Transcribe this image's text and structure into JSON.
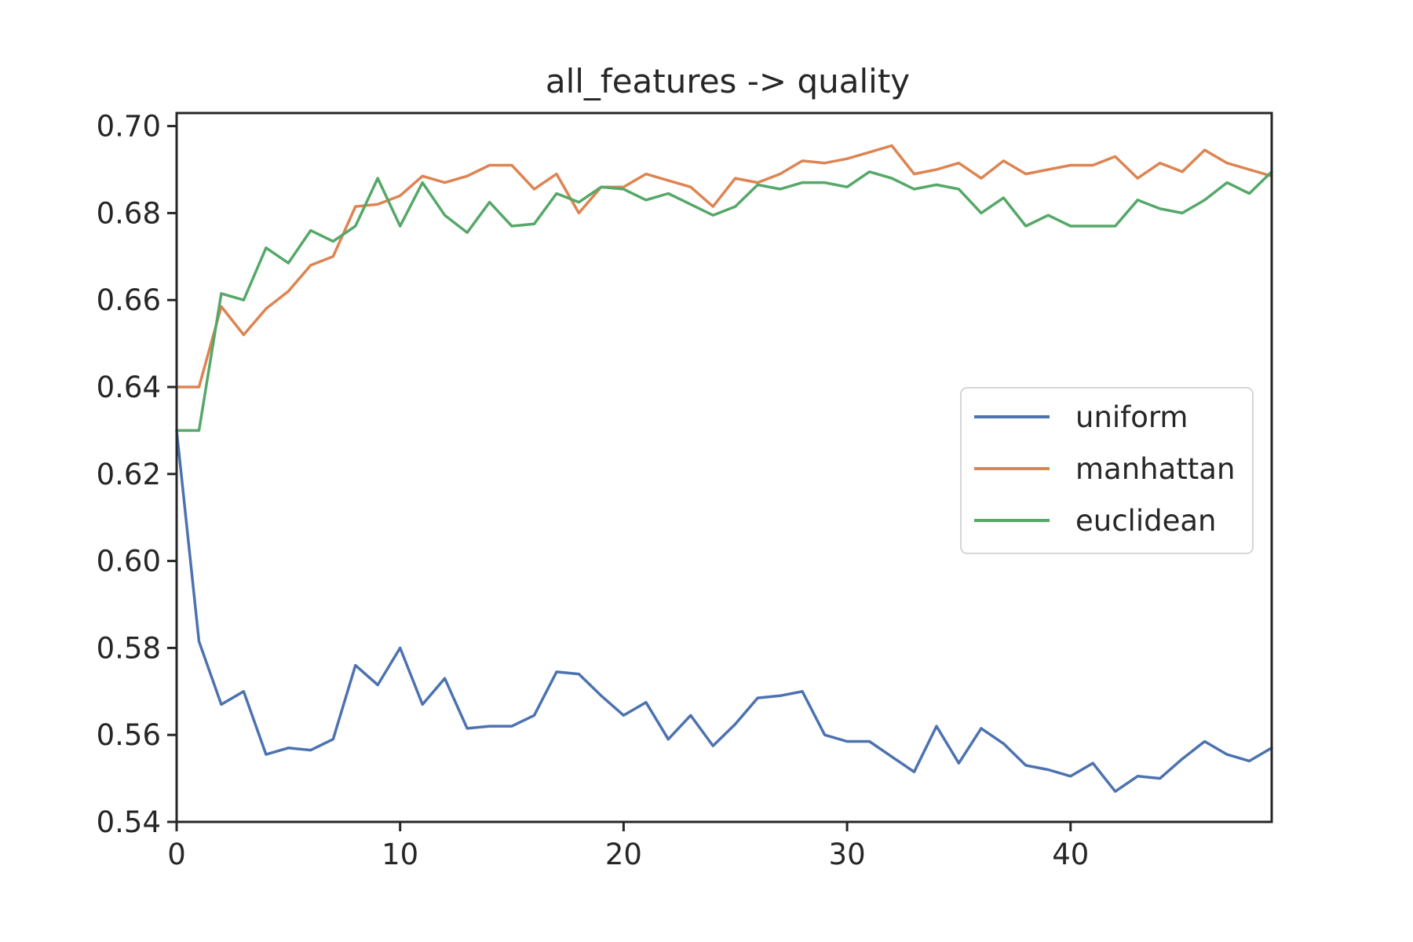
{
  "chart_data": {
    "type": "line",
    "title": "all_features -> quality",
    "xlabel": "",
    "ylabel": "",
    "xlim": [
      0,
      49
    ],
    "ylim": [
      0.54,
      0.703
    ],
    "xticks": [
      0,
      10,
      20,
      30,
      40
    ],
    "xtick_labels": [
      "0",
      "10",
      "20",
      "30",
      "40"
    ],
    "yticks": [
      0.54,
      0.56,
      0.58,
      0.6,
      0.62,
      0.64,
      0.66,
      0.68,
      0.7
    ],
    "ytick_labels": [
      "0.54",
      "0.56",
      "0.58",
      "0.60",
      "0.62",
      "0.64",
      "0.66",
      "0.68",
      "0.70"
    ],
    "grid": false,
    "legend_position": "center-right",
    "series": [
      {
        "name": "uniform",
        "color": "#4c72b0",
        "x": [
          0,
          1,
          2,
          3,
          4,
          5,
          6,
          7,
          8,
          9,
          10,
          11,
          12,
          13,
          14,
          15,
          16,
          17,
          18,
          19,
          20,
          21,
          22,
          23,
          24,
          25,
          26,
          27,
          28,
          29,
          30,
          31,
          32,
          33,
          34,
          35,
          36,
          37,
          38,
          39,
          40,
          41,
          42,
          43,
          44,
          45,
          46,
          47,
          48,
          49
        ],
        "values": [
          0.63,
          0.5815,
          0.567,
          0.57,
          0.5555,
          0.557,
          0.5565,
          0.559,
          0.576,
          0.5715,
          0.58,
          0.567,
          0.573,
          0.5615,
          0.562,
          0.562,
          0.5645,
          0.5745,
          0.574,
          0.569,
          0.5645,
          0.5675,
          0.559,
          0.5645,
          0.5575,
          0.5625,
          0.5685,
          0.569,
          0.57,
          0.56,
          0.5585,
          0.5585,
          0.555,
          0.5515,
          0.562,
          0.5535,
          0.5615,
          0.558,
          0.553,
          0.552,
          0.5505,
          0.5535,
          0.547,
          0.5505,
          0.55,
          0.5545,
          0.5585,
          0.5555,
          0.554,
          0.557
        ]
      },
      {
        "name": "manhattan",
        "color": "#dd8452",
        "x": [
          0,
          1,
          2,
          3,
          4,
          5,
          6,
          7,
          8,
          9,
          10,
          11,
          12,
          13,
          14,
          15,
          16,
          17,
          18,
          19,
          20,
          21,
          22,
          23,
          24,
          25,
          26,
          27,
          28,
          29,
          30,
          31,
          32,
          33,
          34,
          35,
          36,
          37,
          38,
          39,
          40,
          41,
          42,
          43,
          44,
          45,
          46,
          47,
          48,
          49
        ],
        "values": [
          0.64,
          0.64,
          0.6585,
          0.652,
          0.658,
          0.662,
          0.668,
          0.67,
          0.6815,
          0.682,
          0.684,
          0.6885,
          0.687,
          0.6885,
          0.691,
          0.691,
          0.6855,
          0.689,
          0.68,
          0.686,
          0.686,
          0.689,
          0.6875,
          0.686,
          0.6815,
          0.688,
          0.687,
          0.689,
          0.692,
          0.6915,
          0.6925,
          0.694,
          0.6955,
          0.689,
          0.69,
          0.6915,
          0.688,
          0.692,
          0.689,
          0.69,
          0.691,
          0.691,
          0.693,
          0.688,
          0.6915,
          0.6895,
          0.6945,
          0.6915,
          0.69,
          0.6885
        ]
      },
      {
        "name": "euclidean",
        "color": "#55a868",
        "x": [
          0,
          1,
          2,
          3,
          4,
          5,
          6,
          7,
          8,
          9,
          10,
          11,
          12,
          13,
          14,
          15,
          16,
          17,
          18,
          19,
          20,
          21,
          22,
          23,
          24,
          25,
          26,
          27,
          28,
          29,
          30,
          31,
          32,
          33,
          34,
          35,
          36,
          37,
          38,
          39,
          40,
          41,
          42,
          43,
          44,
          45,
          46,
          47,
          48,
          49
        ],
        "values": [
          0.63,
          0.63,
          0.6615,
          0.66,
          0.672,
          0.6685,
          0.676,
          0.6735,
          0.677,
          0.688,
          0.677,
          0.687,
          0.6795,
          0.6755,
          0.6825,
          0.677,
          0.6775,
          0.6845,
          0.6825,
          0.686,
          0.6855,
          0.683,
          0.6845,
          0.682,
          0.6795,
          0.6815,
          0.6865,
          0.6855,
          0.687,
          0.687,
          0.686,
          0.6895,
          0.688,
          0.6855,
          0.6865,
          0.6855,
          0.68,
          0.6835,
          0.677,
          0.6795,
          0.677,
          0.677,
          0.677,
          0.683,
          0.681,
          0.68,
          0.683,
          0.687,
          0.6845,
          0.6895
        ]
      }
    ]
  }
}
